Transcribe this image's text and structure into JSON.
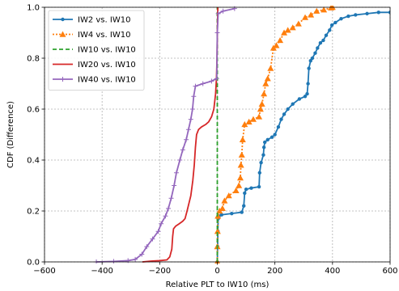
{
  "chart_data": {
    "type": "line",
    "title": "",
    "xlabel": "Relative PLT to IW10 (ms)",
    "ylabel": "CDF (Difference)",
    "xlim": [
      -600,
      600
    ],
    "ylim": [
      0.0,
      1.0
    ],
    "xticks": [
      -600,
      -400,
      -200,
      0,
      200,
      400,
      600
    ],
    "yticks": [
      0.0,
      0.2,
      0.4,
      0.6,
      0.8,
      1.0
    ],
    "xtick_labels": [
      "−600",
      "−400",
      "−200",
      "0",
      "200",
      "400",
      "600"
    ],
    "ytick_labels": [
      "0.0",
      "0.2",
      "0.4",
      "0.6",
      "0.8",
      "1.0"
    ],
    "grid": true,
    "legend_position": "top-left",
    "series": [
      {
        "name": "IW2 vs. IW10",
        "color": "#1f77b4",
        "line_style": "solid",
        "marker": "dot",
        "points": [
          [
            0,
            0
          ],
          [
            1,
            0.06
          ],
          [
            2,
            0.12
          ],
          [
            3,
            0.17
          ],
          [
            6,
            0.18
          ],
          [
            15,
            0.185
          ],
          [
            50,
            0.19
          ],
          [
            85,
            0.195
          ],
          [
            92,
            0.22
          ],
          [
            95,
            0.27
          ],
          [
            100,
            0.285
          ],
          [
            118,
            0.29
          ],
          [
            145,
            0.295
          ],
          [
            147,
            0.35
          ],
          [
            152,
            0.39
          ],
          [
            160,
            0.42
          ],
          [
            162,
            0.45
          ],
          [
            165,
            0.47
          ],
          [
            175,
            0.48
          ],
          [
            190,
            0.49
          ],
          [
            200,
            0.5
          ],
          [
            212,
            0.53
          ],
          [
            222,
            0.56
          ],
          [
            232,
            0.58
          ],
          [
            245,
            0.6
          ],
          [
            262,
            0.62
          ],
          [
            285,
            0.64
          ],
          [
            305,
            0.65
          ],
          [
            312,
            0.66
          ],
          [
            315,
            0.7
          ],
          [
            318,
            0.76
          ],
          [
            324,
            0.79
          ],
          [
            330,
            0.8
          ],
          [
            340,
            0.82
          ],
          [
            348,
            0.84
          ],
          [
            358,
            0.86
          ],
          [
            368,
            0.87
          ],
          [
            378,
            0.89
          ],
          [
            390,
            0.91
          ],
          [
            398,
            0.93
          ],
          [
            410,
            0.94
          ],
          [
            430,
            0.955
          ],
          [
            455,
            0.965
          ],
          [
            480,
            0.97
          ],
          [
            520,
            0.975
          ],
          [
            560,
            0.98
          ],
          [
            600,
            0.98
          ]
        ]
      },
      {
        "name": "IW4 vs. IW10",
        "color": "#ff7f0e",
        "line_style": "dotted",
        "marker": "triangle",
        "points": [
          [
            0,
            0
          ],
          [
            0,
            0.06
          ],
          [
            1,
            0.12
          ],
          [
            2,
            0.18
          ],
          [
            8,
            0.2
          ],
          [
            18,
            0.21
          ],
          [
            25,
            0.24
          ],
          [
            40,
            0.26
          ],
          [
            65,
            0.28
          ],
          [
            75,
            0.3
          ],
          [
            80,
            0.33
          ],
          [
            82,
            0.38
          ],
          [
            85,
            0.42
          ],
          [
            88,
            0.48
          ],
          [
            95,
            0.54
          ],
          [
            110,
            0.55
          ],
          [
            125,
            0.56
          ],
          [
            145,
            0.57
          ],
          [
            150,
            0.6
          ],
          [
            155,
            0.62
          ],
          [
            162,
            0.66
          ],
          [
            168,
            0.7
          ],
          [
            175,
            0.72
          ],
          [
            185,
            0.76
          ],
          [
            195,
            0.84
          ],
          [
            205,
            0.85
          ],
          [
            218,
            0.87
          ],
          [
            232,
            0.9
          ],
          [
            245,
            0.91
          ],
          [
            262,
            0.92
          ],
          [
            282,
            0.935
          ],
          [
            305,
            0.96
          ],
          [
            325,
            0.97
          ],
          [
            345,
            0.985
          ],
          [
            370,
            0.99
          ],
          [
            395,
            0.998
          ],
          [
            400,
            1.0
          ]
        ]
      },
      {
        "name": "IW10 vs. IW10",
        "color": "#2ca02c",
        "line_style": "dashed",
        "marker": "none",
        "points": [
          [
            0,
            0
          ],
          [
            0,
            1.0
          ]
        ]
      },
      {
        "name": "IW20 vs. IW10",
        "color": "#d62728",
        "line_style": "solid",
        "marker": "none",
        "points": [
          [
            -260,
            0
          ],
          [
            -230,
            0.003
          ],
          [
            -200,
            0.005
          ],
          [
            -175,
            0.008
          ],
          [
            -165,
            0.02
          ],
          [
            -158,
            0.05
          ],
          [
            -155,
            0.1
          ],
          [
            -152,
            0.13
          ],
          [
            -145,
            0.14
          ],
          [
            -132,
            0.15
          ],
          [
            -120,
            0.16
          ],
          [
            -112,
            0.17
          ],
          [
            -105,
            0.2
          ],
          [
            -92,
            0.26
          ],
          [
            -85,
            0.32
          ],
          [
            -80,
            0.38
          ],
          [
            -76,
            0.45
          ],
          [
            -72,
            0.5
          ],
          [
            -65,
            0.52
          ],
          [
            -55,
            0.53
          ],
          [
            -40,
            0.54
          ],
          [
            -30,
            0.55
          ],
          [
            -20,
            0.57
          ],
          [
            -12,
            0.6
          ],
          [
            -6,
            0.66
          ],
          [
            -3,
            0.72
          ],
          [
            -1,
            0.8
          ],
          [
            0,
            0.9
          ],
          [
            2,
            1.0
          ]
        ]
      },
      {
        "name": "IW40 vs. IW10",
        "color": "#9467bd",
        "line_style": "solid",
        "marker": "plus",
        "points": [
          [
            -420,
            0
          ],
          [
            -360,
            0.002
          ],
          [
            -310,
            0.005
          ],
          [
            -285,
            0.01
          ],
          [
            -262,
            0.03
          ],
          [
            -245,
            0.06
          ],
          [
            -225,
            0.09
          ],
          [
            -205,
            0.12
          ],
          [
            -195,
            0.15
          ],
          [
            -180,
            0.18
          ],
          [
            -170,
            0.21
          ],
          [
            -160,
            0.25
          ],
          [
            -150,
            0.3
          ],
          [
            -142,
            0.35
          ],
          [
            -130,
            0.4
          ],
          [
            -120,
            0.44
          ],
          [
            -108,
            0.48
          ],
          [
            -100,
            0.52
          ],
          [
            -92,
            0.56
          ],
          [
            -86,
            0.6
          ],
          [
            -82,
            0.65
          ],
          [
            -76,
            0.69
          ],
          [
            -50,
            0.7
          ],
          [
            -20,
            0.71
          ],
          [
            -2,
            0.72
          ],
          [
            0,
            0.9
          ],
          [
            3,
            0.975
          ],
          [
            20,
            0.985
          ],
          [
            60,
            0.995
          ]
        ]
      }
    ]
  }
}
